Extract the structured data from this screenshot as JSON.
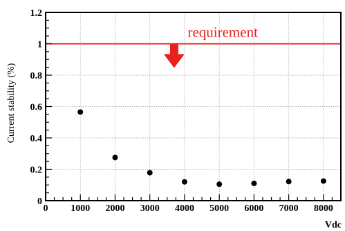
{
  "chart_data": {
    "type": "scatter",
    "title": "",
    "xlabel": "Vdc",
    "ylabel": "Current stability (%)",
    "xlim": [
      0,
      8500
    ],
    "ylim": [
      0,
      1.2
    ],
    "x_ticks": [
      0,
      1000,
      2000,
      3000,
      4000,
      5000,
      6000,
      7000,
      8000
    ],
    "x_tick_labels": [
      "0",
      "1000",
      "2000",
      "3000",
      "4000",
      "5000",
      "6000",
      "7000",
      "8000"
    ],
    "y_ticks": [
      0,
      0.2,
      0.4,
      0.6,
      0.8,
      1.0,
      1.2
    ],
    "y_tick_labels": [
      "0",
      "0.2",
      "0.4",
      "0.6",
      "0.8",
      "1",
      "1.2"
    ],
    "grid": true,
    "series": [
      {
        "x": [
          1000,
          2000,
          3000,
          4000,
          5000,
          6000,
          7000,
          8000
        ],
        "y": [
          0.565,
          0.275,
          0.178,
          0.12,
          0.105,
          0.11,
          0.122,
          0.125
        ],
        "color": "#000000"
      }
    ],
    "annotations": [
      {
        "type": "hline",
        "y": 1.0,
        "text": "requirement",
        "color": "#e8211d",
        "text_x": 5100,
        "arrow_x": 3700,
        "arrow_direction": "down"
      }
    ]
  }
}
